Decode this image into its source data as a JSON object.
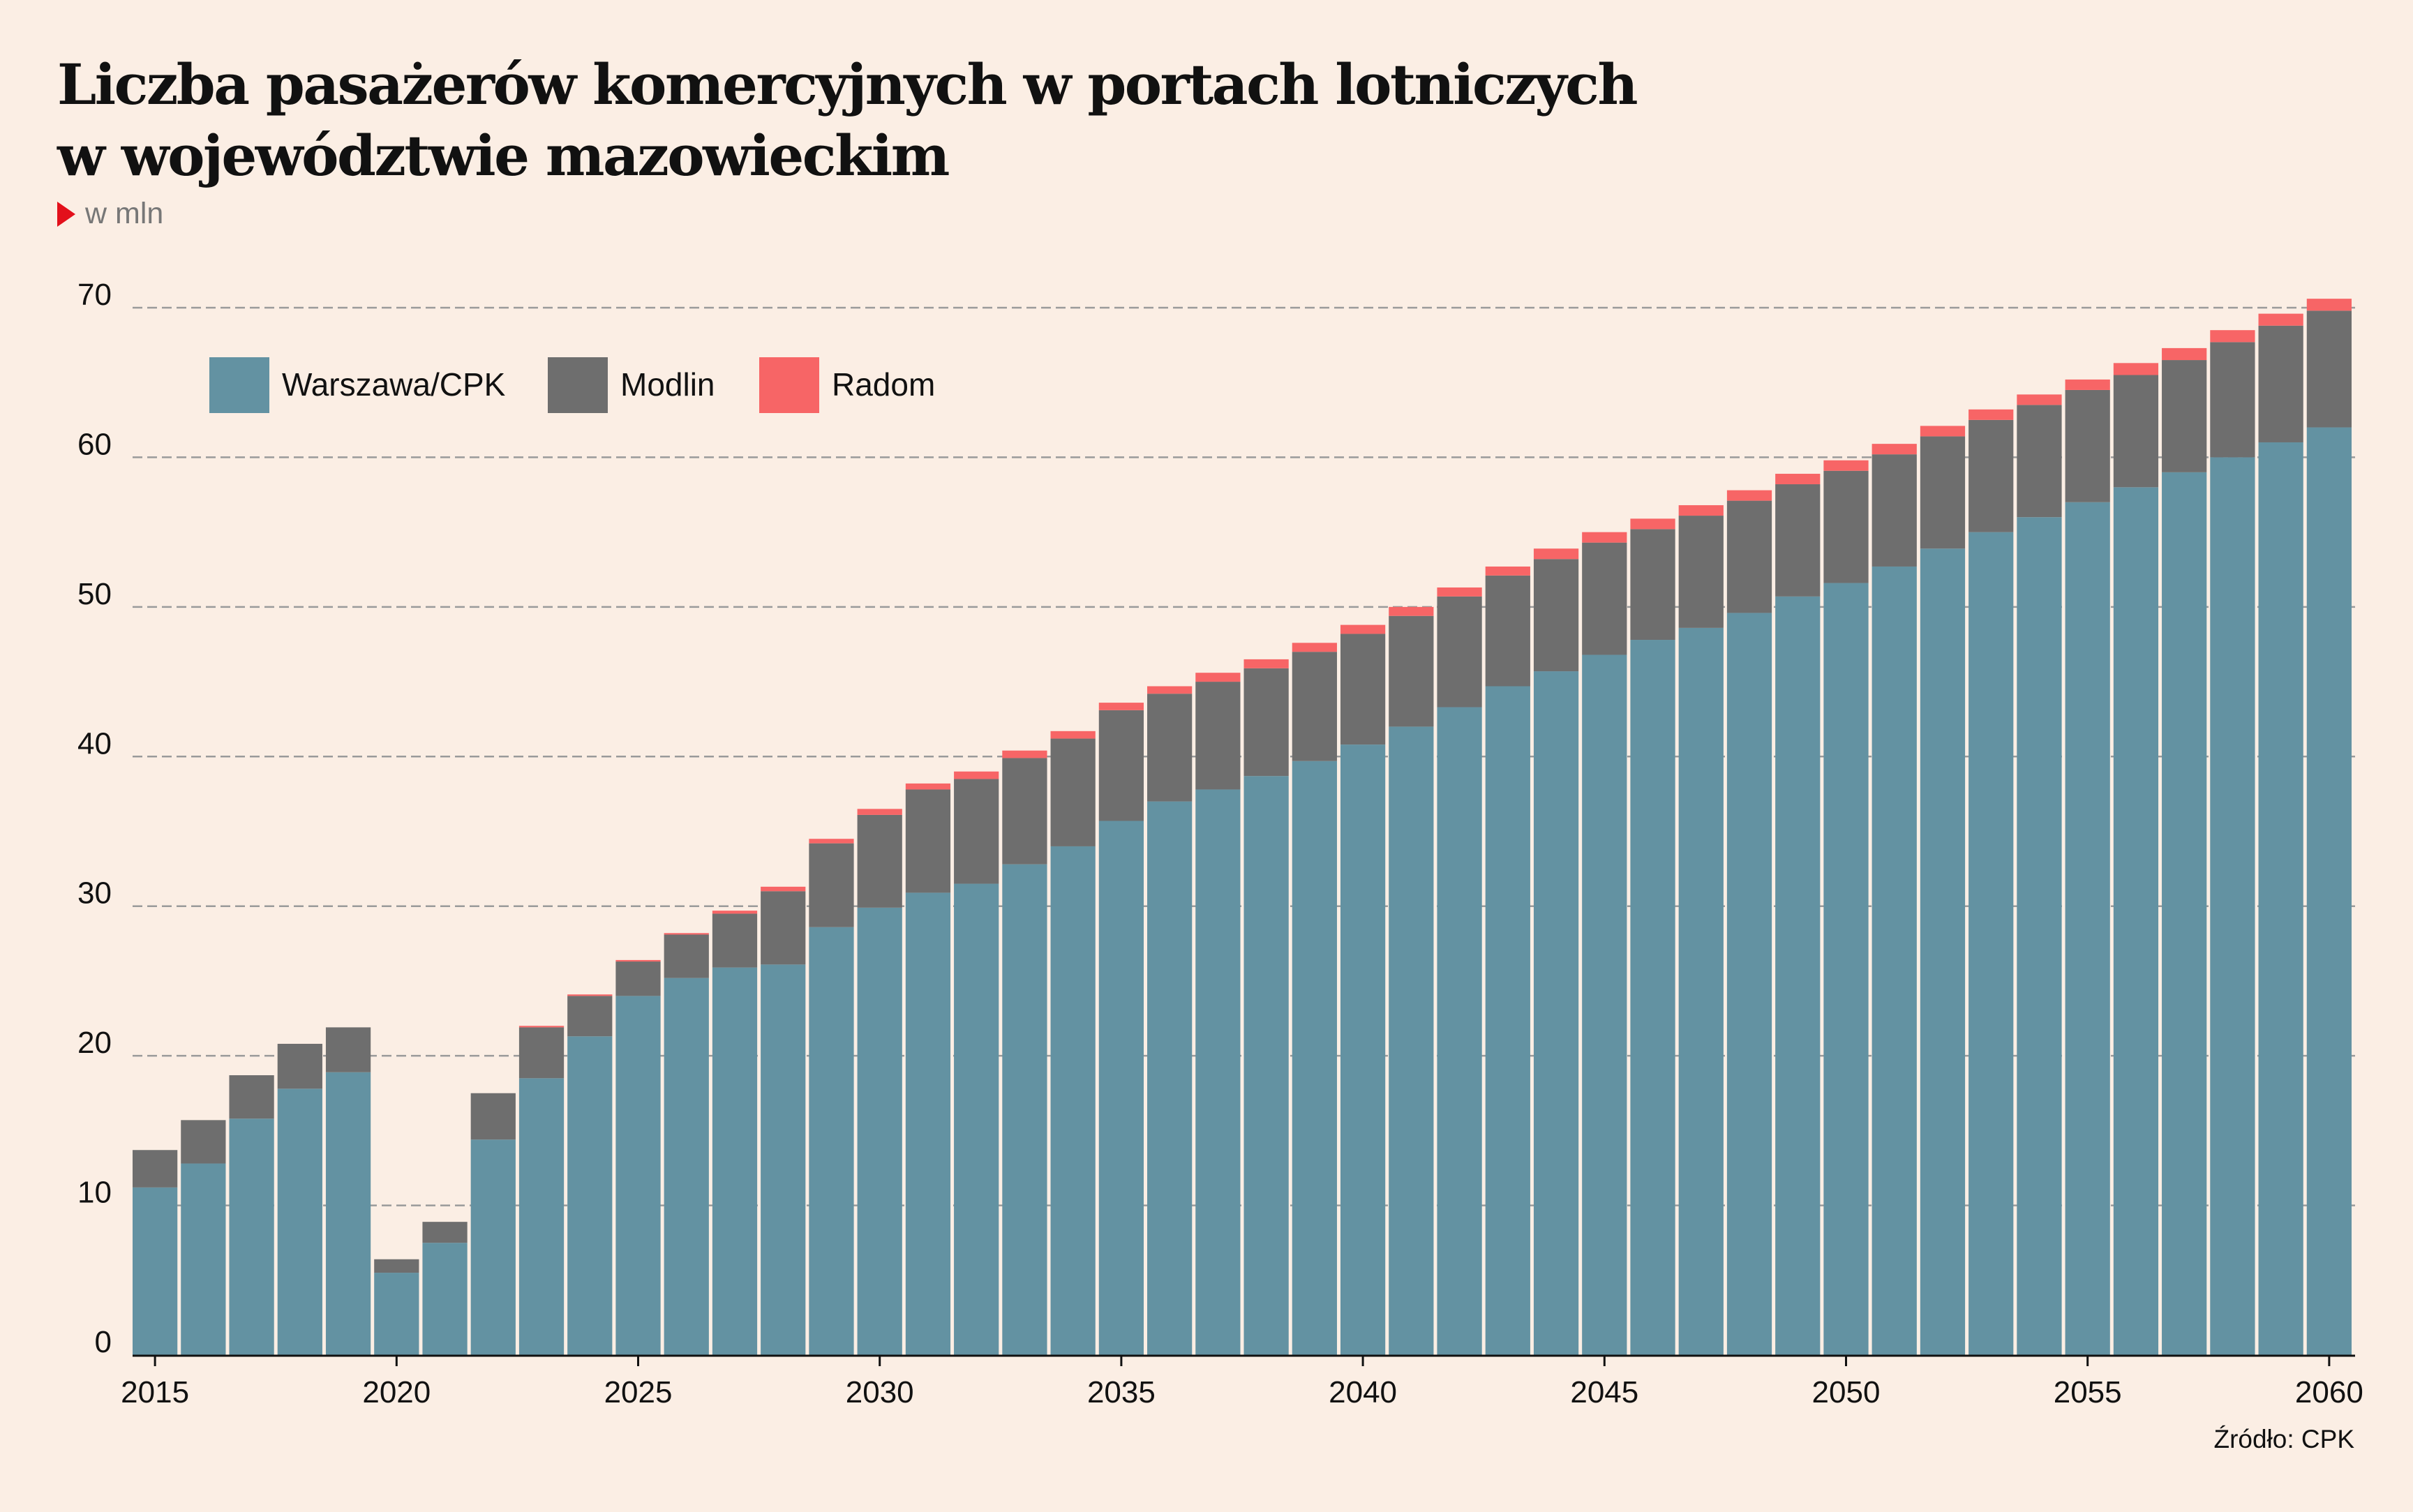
{
  "title_lines": [
    "Liczba pasażerów komercyjnych w portach lotniczych",
    "w województwie mazowieckim"
  ],
  "unit_label": "w mln",
  "source": "Źródło: CPK",
  "colors": {
    "background": "#fbeee4",
    "marker": "#e3101b",
    "grid": "#9a9a9a",
    "axis": "#111111"
  },
  "chart_data": {
    "type": "bar",
    "stacked": true,
    "title": "Liczba pasażerów komercyjnych w portach lotniczych w województwie mazowieckim",
    "ylabel": "w mln",
    "ylim": [
      0,
      70
    ],
    "yticks": [
      0,
      10,
      20,
      30,
      40,
      50,
      60,
      70
    ],
    "xtick_labels": [
      "2015",
      "2020",
      "2025",
      "2030",
      "2035",
      "2040",
      "2045",
      "2050",
      "2055",
      "2060"
    ],
    "grid": true,
    "legend_position": "top-left",
    "categories": [
      2015,
      2016,
      2017,
      2018,
      2019,
      2020,
      2021,
      2022,
      2023,
      2024,
      2025,
      2026,
      2027,
      2028,
      2029,
      2030,
      2031,
      2032,
      2033,
      2034,
      2035,
      2036,
      2037,
      2038,
      2039,
      2040,
      2041,
      2042,
      2043,
      2044,
      2045,
      2046,
      2047,
      2048,
      2049,
      2050,
      2051,
      2052,
      2053,
      2054,
      2055,
      2056,
      2057,
      2058,
      2059,
      2060
    ],
    "series": [
      {
        "name": "Warszawa/CPK",
        "color": "#6392a2",
        "values": [
          11.2,
          12.8,
          15.8,
          17.8,
          18.9,
          5.5,
          7.5,
          14.4,
          18.5,
          21.3,
          24.0,
          25.2,
          25.9,
          26.1,
          28.6,
          29.9,
          30.9,
          31.5,
          32.8,
          34.0,
          35.7,
          37.0,
          37.8,
          38.7,
          39.7,
          40.8,
          42.0,
          43.3,
          44.7,
          45.7,
          46.8,
          47.8,
          48.6,
          49.6,
          50.7,
          51.6,
          52.7,
          53.9,
          55.0,
          56.0,
          57.0,
          58.0,
          59.0,
          60.0,
          61.0,
          62.0
        ]
      },
      {
        "name": "Modlin",
        "color": "#6e6e6e",
        "values": [
          2.5,
          2.9,
          2.9,
          3.0,
          3.0,
          0.9,
          1.4,
          3.1,
          3.4,
          2.7,
          2.3,
          2.9,
          3.6,
          4.9,
          5.6,
          6.2,
          6.9,
          7.0,
          7.1,
          7.2,
          7.4,
          7.2,
          7.2,
          7.2,
          7.3,
          7.4,
          7.4,
          7.4,
          7.4,
          7.5,
          7.5,
          7.4,
          7.5,
          7.5,
          7.5,
          7.5,
          7.5,
          7.5,
          7.5,
          7.5,
          7.5,
          7.5,
          7.5,
          7.7,
          7.8,
          7.8
        ]
      },
      {
        "name": "Radom",
        "color": "#f76566",
        "values": [
          0,
          0,
          0,
          0,
          0,
          0,
          0,
          0,
          0.1,
          0.1,
          0.1,
          0.1,
          0.2,
          0.3,
          0.3,
          0.4,
          0.4,
          0.5,
          0.5,
          0.5,
          0.5,
          0.5,
          0.6,
          0.6,
          0.6,
          0.6,
          0.6,
          0.6,
          0.6,
          0.7,
          0.7,
          0.7,
          0.7,
          0.7,
          0.7,
          0.7,
          0.7,
          0.7,
          0.7,
          0.7,
          0.7,
          0.8,
          0.8,
          0.8,
          0.8,
          0.8
        ]
      }
    ]
  }
}
